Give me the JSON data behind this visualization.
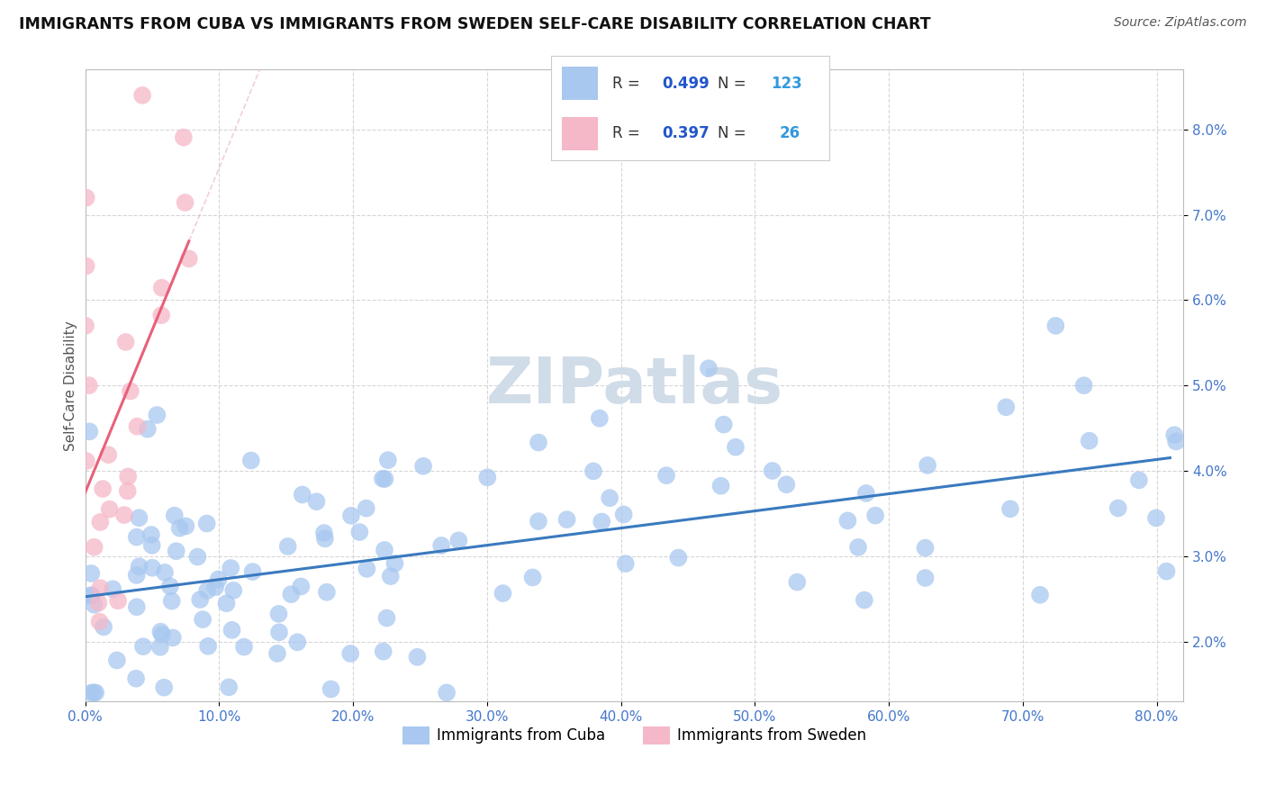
{
  "title": "IMMIGRANTS FROM CUBA VS IMMIGRANTS FROM SWEDEN SELF-CARE DISABILITY CORRELATION CHART",
  "source": "Source: ZipAtlas.com",
  "ylabel": "Self-Care Disability",
  "cuba_R": 0.499,
  "cuba_N": 123,
  "sweden_R": 0.397,
  "sweden_N": 26,
  "cuba_color": "#a8c8f0",
  "sweden_color": "#f5b8c8",
  "cuba_line_color": "#3a7abf",
  "sweden_line_color": "#e8607a",
  "sweden_dash_color": "#e8b0bc",
  "watermark_color": "#d0dce8",
  "xlim": [
    0.0,
    0.82
  ],
  "ylim": [
    0.013,
    0.087
  ],
  "xtick_vals": [
    0.0,
    0.1,
    0.2,
    0.3,
    0.4,
    0.5,
    0.6,
    0.7,
    0.8
  ],
  "ytick_vals": [
    0.02,
    0.03,
    0.04,
    0.05,
    0.06,
    0.07,
    0.08
  ],
  "title_color": "#111111",
  "source_color": "#555555",
  "tick_color": "#4477cc",
  "axis_color": "#bbbbbb",
  "grid_color": "#cccccc",
  "legend_text_color": "#333333",
  "legend_val_color": "#2255cc",
  "legend_n_color": "#3399dd"
}
